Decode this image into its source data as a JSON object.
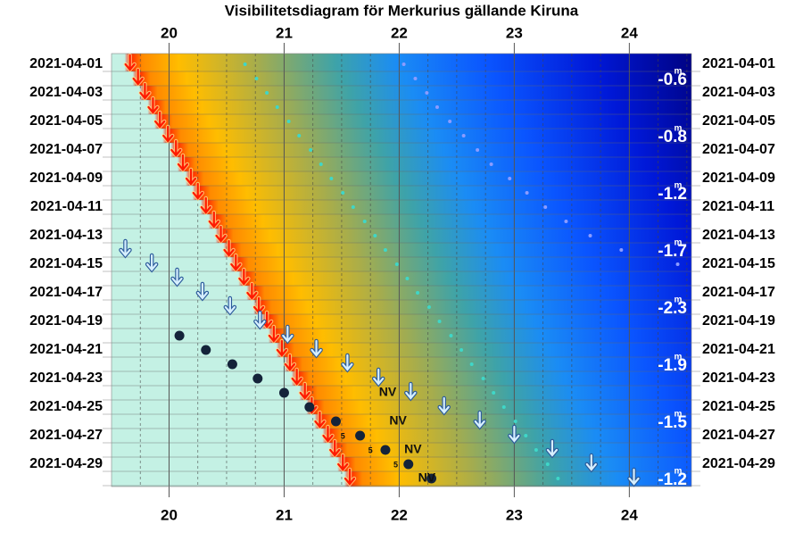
{
  "chart_data": {
    "type": "visibility",
    "title": "Visibilitetsdiagram för Merkurius gällande Kiruna",
    "categories": [
      "2021-04-01",
      null,
      "2021-04-03",
      null,
      "2021-04-05",
      null,
      "2021-04-07",
      null,
      "2021-04-09",
      null,
      "2021-04-11",
      null,
      "2021-04-13",
      null,
      "2021-04-15",
      null,
      "2021-04-17",
      null,
      "2021-04-19",
      null,
      "2021-04-21",
      null,
      "2021-04-23",
      null,
      "2021-04-25",
      null,
      "2021-04-27",
      null,
      "2021-04-29",
      null
    ],
    "xlim": [
      19.5,
      24.54
    ],
    "xticks": [
      20,
      21,
      22,
      23,
      24
    ],
    "xticks_minor": [
      19.75,
      20.25,
      20.5,
      20.75,
      21.25,
      21.5,
      21.75,
      22.25,
      22.5,
      22.75,
      23.25,
      23.5,
      23.75,
      24.25,
      24.5
    ],
    "grid": true,
    "series": [
      {
        "name": "sunset",
        "marker": "arrow",
        "color": "#ff1a00",
        "values": [
          19.66,
          19.73,
          19.79,
          19.86,
          19.92,
          19.99,
          20.06,
          20.12,
          20.19,
          20.25,
          20.32,
          20.39,
          20.45,
          20.52,
          20.58,
          20.65,
          20.72,
          20.78,
          20.85,
          20.91,
          20.98,
          21.05,
          21.11,
          21.18,
          21.24,
          21.31,
          21.38,
          21.44,
          21.51,
          21.57
        ]
      },
      {
        "name": "cyan",
        "marker": "dot-small",
        "color": "#3fd7c8",
        "values": [
          20.66,
          20.76,
          20.85,
          20.94,
          21.04,
          21.13,
          21.23,
          21.32,
          21.41,
          21.51,
          21.6,
          21.7,
          21.79,
          21.88,
          21.98,
          22.07,
          22.16,
          22.26,
          22.35,
          22.45,
          22.54,
          22.63,
          22.73,
          22.82,
          22.91,
          23.01,
          23.1,
          23.19,
          23.29,
          23.38
        ]
      },
      {
        "name": "faint",
        "marker": "dot-small",
        "color": "#8c9cff",
        "values": [
          22.04,
          22.14,
          22.24,
          22.33,
          22.44,
          22.56,
          22.68,
          22.8,
          22.96,
          23.11,
          23.27,
          23.45,
          23.66,
          23.93,
          24.42,
          null,
          null,
          null,
          null,
          null,
          null,
          null,
          null,
          null,
          null,
          null,
          null,
          null,
          null,
          null
        ]
      },
      {
        "name": "mercury-set",
        "marker": "arrow",
        "color": "#d6efff",
        "values": [
          null,
          null,
          null,
          null,
          null,
          null,
          null,
          null,
          null,
          null,
          null,
          null,
          null,
          19.62,
          19.85,
          20.07,
          20.29,
          20.53,
          20.79,
          21.03,
          21.28,
          21.55,
          21.82,
          22.1,
          22.39,
          22.7,
          23.0,
          23.33,
          23.67,
          24.04
        ]
      },
      {
        "name": "mercury",
        "marker": "dot",
        "color": "#14233a",
        "values": [
          null,
          null,
          null,
          null,
          null,
          null,
          null,
          null,
          null,
          null,
          null,
          null,
          null,
          null,
          null,
          null,
          null,
          null,
          null,
          20.09,
          20.32,
          20.55,
          20.77,
          21.0,
          21.22,
          21.45,
          21.66,
          21.88,
          22.08,
          22.28
        ]
      }
    ],
    "nv_labels": {
      "text": "NV",
      "x": [
        null,
        null,
        null,
        null,
        null,
        null,
        null,
        null,
        null,
        null,
        null,
        null,
        null,
        null,
        null,
        null,
        null,
        null,
        null,
        null,
        null,
        null,
        null,
        21.9,
        null,
        21.99,
        null,
        22.12,
        null,
        22.24
      ]
    },
    "five_labels": {
      "text": "5",
      "x": [
        null,
        null,
        null,
        null,
        null,
        null,
        null,
        null,
        null,
        null,
        null,
        null,
        null,
        null,
        null,
        null,
        null,
        null,
        null,
        null,
        null,
        null,
        null,
        null,
        null,
        null,
        21.51,
        21.75,
        21.97,
        null
      ]
    },
    "magnitude": {
      "unit": "m",
      "values": [
        null,
        -0.6,
        null,
        null,
        null,
        -0.8,
        null,
        null,
        null,
        -1.2,
        null,
        null,
        null,
        -1.7,
        null,
        null,
        null,
        -2.3,
        null,
        null,
        null,
        -1.9,
        null,
        null,
        null,
        -1.5,
        null,
        null,
        null,
        -1.2
      ]
    }
  }
}
